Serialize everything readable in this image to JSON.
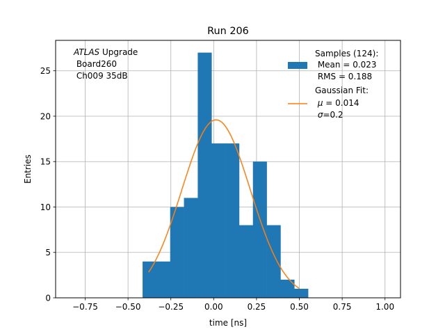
{
  "chart_data": {
    "type": "bar",
    "title": "Run 206",
    "xlabel": "time [ns]",
    "ylabel": "Entries",
    "xlim": [
      -0.9226,
      1.0904
    ],
    "ylim": [
      0,
      28.35
    ],
    "grid": true,
    "xticks": [
      -0.75,
      -0.5,
      -0.25,
      0.0,
      0.25,
      0.5,
      0.75,
      1.0
    ],
    "xtick_labels": [
      "−0.75",
      "−0.50",
      "−0.25",
      "0.00",
      "0.25",
      "0.50",
      "0.75",
      "1.00"
    ],
    "yticks": [
      0,
      5,
      10,
      15,
      20,
      25
    ],
    "ytick_labels": [
      "0",
      "5",
      "10",
      "15",
      "20",
      "25"
    ],
    "bin_edges": [
      -0.415,
      -0.3345,
      -0.254,
      -0.1735,
      -0.093,
      -0.0125,
      0.068,
      0.1485,
      0.229,
      0.3095,
      0.39,
      0.4705,
      0.551
    ],
    "histogram": {
      "name": "Samples (124):",
      "color": "#1f77b4",
      "values": [
        4,
        4,
        10,
        11,
        27,
        17,
        17,
        8,
        15,
        8,
        2,
        1
      ]
    },
    "fit": {
      "name": "Gaussian Fit:",
      "color": "#ff7f0e",
      "mu": 0.014,
      "sigma": 0.2,
      "amplitude": 19.6,
      "x_range": [
        -0.38,
        0.5
      ]
    },
    "annotation": {
      "italic": "ATLAS",
      "rest": " Upgrade",
      "line2": " Board260",
      "line3": " Ch009 35dB"
    },
    "legend": {
      "position": "top-right",
      "hist_title": "Samples (124):",
      "hist_line1": " Mean = 0.023",
      "hist_line2": " RMS = 0.188",
      "fit_title": "Gaussian Fit:",
      "fit_mu_value": " = 0.014",
      "fit_sigma_value": "=0.2"
    }
  }
}
